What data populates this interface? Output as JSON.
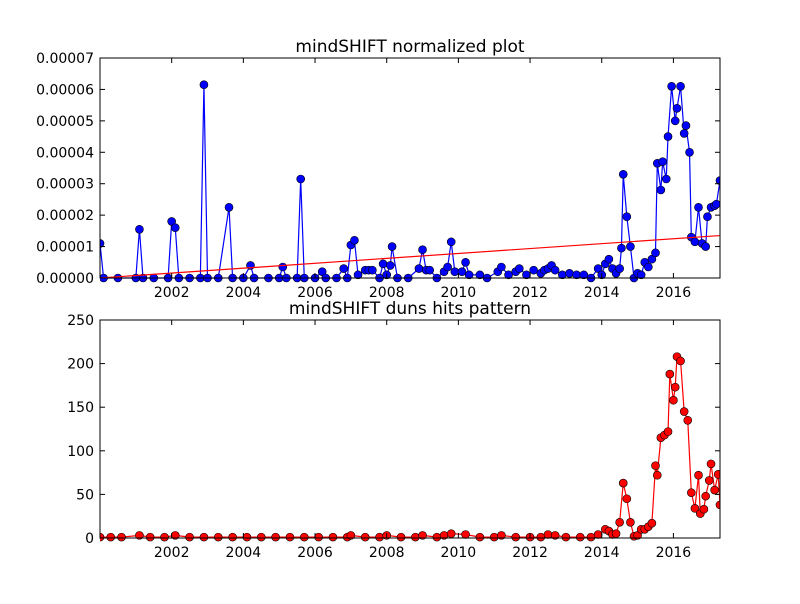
{
  "chart_data": [
    {
      "type": "line",
      "title": "mindSHIFT normalized plot",
      "xlim": [
        2000.0,
        2017.3
      ],
      "xticks": [
        2002,
        2004,
        2006,
        2008,
        2010,
        2012,
        2014,
        2016
      ],
      "ylim": [
        0,
        7e-05
      ],
      "yticks": [
        {
          "value": 0,
          "label": "0.00000"
        },
        {
          "value": 1e-05,
          "label": "0.00001"
        },
        {
          "value": 2e-05,
          "label": "0.00002"
        },
        {
          "value": 3e-05,
          "label": "0.00003"
        },
        {
          "value": 4e-05,
          "label": "0.00004"
        },
        {
          "value": 5e-05,
          "label": "0.00005"
        },
        {
          "value": 6e-05,
          "label": "0.00006"
        },
        {
          "value": 7e-05,
          "label": "0.00007"
        }
      ],
      "series": [
        {
          "color": "#0000ff",
          "markers": true,
          "x": [
            2000.0,
            2000.1,
            2000.5,
            2001.0,
            2001.1,
            2001.2,
            2001.5,
            2001.9,
            2002.0,
            2002.1,
            2002.2,
            2002.5,
            2002.8,
            2002.9,
            2003.0,
            2003.3,
            2003.6,
            2003.7,
            2004.0,
            2004.2,
            2004.3,
            2004.7,
            2005.0,
            2005.1,
            2005.2,
            2005.5,
            2005.6,
            2005.7,
            2006.0,
            2006.2,
            2006.3,
            2006.6,
            2006.8,
            2006.9,
            2007.0,
            2007.1,
            2007.2,
            2007.4,
            2007.5,
            2007.6,
            2007.8,
            2007.9,
            2008.0,
            2008.1,
            2008.15,
            2008.3,
            2008.6,
            2008.9,
            2009.0,
            2009.1,
            2009.2,
            2009.4,
            2009.6,
            2009.7,
            2009.8,
            2009.9,
            2010.1,
            2010.2,
            2010.3,
            2010.6,
            2010.8,
            2011.1,
            2011.2,
            2011.4,
            2011.6,
            2011.7,
            2011.9,
            2012.1,
            2012.3,
            2012.4,
            2012.5,
            2012.6,
            2012.7,
            2012.9,
            2013.1,
            2013.3,
            2013.5,
            2013.7,
            2013.9,
            2014.0,
            2014.1,
            2014.2,
            2014.3,
            2014.4,
            2014.5,
            2014.55,
            2014.6,
            2014.7,
            2014.8,
            2014.9,
            2015.0,
            2015.1,
            2015.2,
            2015.3,
            2015.4,
            2015.5,
            2015.55,
            2015.65,
            2015.7,
            2015.8,
            2015.85,
            2015.95,
            2016.05,
            2016.1,
            2016.2,
            2016.3,
            2016.35,
            2016.45,
            2016.5,
            2016.6,
            2016.7,
            2016.8,
            2016.9,
            2016.95,
            2017.05,
            2017.15,
            2017.2,
            2017.3
          ],
          "values": [
            1.1e-05,
            0,
            0,
            0,
            1.55e-05,
            0,
            0,
            0,
            1.8e-05,
            1.6e-05,
            0,
            0,
            0,
            6.15e-05,
            0,
            0,
            2.25e-05,
            0,
            0,
            4e-06,
            0,
            0,
            0,
            3.5e-06,
            0,
            0,
            3.15e-05,
            0,
            0,
            2e-06,
            0,
            0,
            3e-06,
            0,
            1.05e-05,
            1.2e-05,
            1e-06,
            2.5e-06,
            2.5e-06,
            2.5e-06,
            0,
            4.5e-06,
            1e-06,
            4e-06,
            1e-05,
            0,
            0,
            3e-06,
            9e-06,
            2.5e-06,
            2.5e-06,
            0,
            2e-06,
            3.5e-06,
            1.15e-05,
            2e-06,
            2e-06,
            5e-06,
            1e-06,
            1e-06,
            0,
            2e-06,
            3.5e-06,
            1e-06,
            2e-06,
            3e-06,
            1e-06,
            2.5e-06,
            1.5e-06,
            2.5e-06,
            3e-06,
            4e-06,
            2.5e-06,
            1e-06,
            1.5e-06,
            1e-06,
            1e-06,
            0,
            3e-06,
            1e-06,
            4.5e-06,
            6e-06,
            3e-06,
            1.5e-06,
            3e-06,
            9.5e-06,
            3.3e-05,
            1.95e-05,
            1e-05,
            0,
            1.5e-06,
            1e-06,
            5e-06,
            3.5e-06,
            6e-06,
            8e-06,
            3.65e-05,
            2.8e-05,
            3.7e-05,
            3.15e-05,
            4.5e-05,
            6.1e-05,
            5e-05,
            5.4e-05,
            6.1e-05,
            4.6e-05,
            4.85e-05,
            4e-05,
            1.3e-05,
            1.15e-05,
            2.25e-05,
            1.1e-05,
            1e-05,
            1.95e-05,
            2.25e-05,
            2.3e-05,
            2.35e-05,
            3.1e-05
          ]
        },
        {
          "color": "#ff0000",
          "markers": false,
          "x": [
            2000.0,
            2017.3
          ],
          "values": [
            0,
            1.35e-05
          ]
        }
      ]
    },
    {
      "type": "line",
      "title": "mindSHIFT duns hits pattern",
      "xlim": [
        2000.0,
        2017.3
      ],
      "xticks": [
        2002,
        2004,
        2006,
        2008,
        2010,
        2012,
        2014,
        2016
      ],
      "ylim": [
        0,
        250
      ],
      "yticks": [
        0,
        50,
        100,
        150,
        200,
        250
      ],
      "series": [
        {
          "color": "#ff0000",
          "markers": true,
          "x": [
            2000.0,
            2000.3,
            2000.6,
            2001.1,
            2001.4,
            2001.8,
            2002.1,
            2002.5,
            2002.9,
            2003.3,
            2003.7,
            2004.1,
            2004.5,
            2004.9,
            2005.3,
            2005.7,
            2006.1,
            2006.5,
            2006.9,
            2007.0,
            2007.4,
            2007.8,
            2008.0,
            2008.4,
            2008.8,
            2009.0,
            2009.4,
            2009.6,
            2009.8,
            2010.2,
            2010.6,
            2011.0,
            2011.2,
            2011.6,
            2012.0,
            2012.3,
            2012.5,
            2012.7,
            2013.0,
            2013.4,
            2013.7,
            2013.9,
            2014.1,
            2014.2,
            2014.3,
            2014.4,
            2014.5,
            2014.6,
            2014.7,
            2014.8,
            2014.9,
            2015.0,
            2015.1,
            2015.2,
            2015.3,
            2015.4,
            2015.5,
            2015.55,
            2015.65,
            2015.75,
            2015.85,
            2015.9,
            2016.0,
            2016.05,
            2016.1,
            2016.2,
            2016.3,
            2016.4,
            2016.5,
            2016.6,
            2016.7,
            2016.75,
            2016.85,
            2016.9,
            2017.0,
            2017.05,
            2017.15,
            2017.25,
            2017.3
          ],
          "values": [
            1,
            1,
            1,
            3,
            1,
            1,
            3,
            1,
            1,
            1,
            1,
            1,
            1,
            1,
            1,
            1,
            1,
            1,
            1,
            3,
            1,
            1,
            3,
            1,
            1,
            3,
            1,
            3,
            5,
            4,
            1,
            1,
            3,
            1,
            1,
            1,
            4,
            3,
            1,
            1,
            1,
            4,
            10,
            8,
            4,
            5,
            18,
            63,
            45,
            18,
            2,
            3,
            10,
            10,
            13,
            17,
            83,
            72,
            115,
            118,
            122,
            188,
            158,
            173,
            208,
            203,
            145,
            135,
            52,
            34,
            72,
            28,
            33,
            48,
            66,
            85,
            55,
            73,
            38
          ]
        }
      ]
    }
  ]
}
